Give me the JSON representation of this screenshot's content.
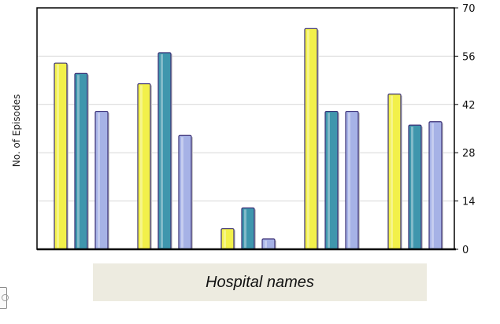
{
  "chart_data": {
    "type": "bar",
    "title": "",
    "xlabel": "Hospital names",
    "ylabel": "No. of Episodes",
    "ylim": [
      0,
      70
    ],
    "yticks": [
      0,
      14,
      28,
      42,
      56,
      70
    ],
    "y_axis_side": "right",
    "grid": true,
    "categories": [
      "",
      "",
      "",
      "",
      ""
    ],
    "series": [
      {
        "values": [
          54,
          48,
          6,
          64,
          45
        ]
      },
      {
        "values": [
          51,
          57,
          12,
          40,
          36
        ]
      },
      {
        "values": [
          40,
          33,
          3,
          40,
          37
        ]
      }
    ]
  },
  "colors": {
    "series": [
      "#f2f04a",
      "#3f96ad",
      "#a6b2e6"
    ],
    "bar_outline": "#3a2f76",
    "grid": "#d7d7d7",
    "axis": "#000000",
    "xlabel_background": "#edebe0"
  }
}
